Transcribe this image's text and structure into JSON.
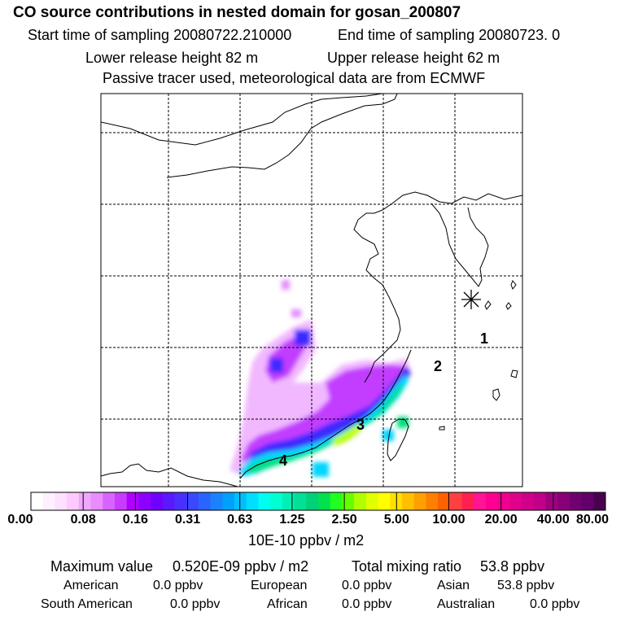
{
  "header": {
    "title": "CO  source contributions in nested domain for gosan_200807",
    "start": "Start time of sampling 20080722.210000",
    "end": "End time of sampling 20080723.     0",
    "lower": "Lower release height   82 m",
    "upper": "Upper release height   62 m",
    "note": "Passive tracer used, meteorological data are from ECMWF"
  },
  "map": {
    "receptor_markers": [
      "1",
      "2",
      "3",
      "4"
    ],
    "receptor_symbol": "star-marker",
    "grid": "dashed",
    "max_colors": [
      "#b000ff",
      "#3b2cff",
      "#00c8ff",
      "#00ffc8",
      "#9cff00",
      "#ffff00"
    ]
  },
  "colorbar": {
    "ticks": [
      "0.00",
      "0.08",
      "0.16",
      "0.31",
      "0.63",
      "1.25",
      "2.50",
      "5.00",
      "10.00",
      "20.00",
      "40.00",
      "80.00"
    ],
    "colors": [
      "#ffffff",
      "#fff0ff",
      "#ffe0ff",
      "#ffc8ff",
      "#f0a8ff",
      "#e88cff",
      "#d864ff",
      "#c83cff",
      "#b000ff",
      "#8c00ff",
      "#7000ff",
      "#5a18ff",
      "#4a30ff",
      "#3a48ff",
      "#2a64ff",
      "#1a82ff",
      "#00a0ff",
      "#00bfff",
      "#00dfff",
      "#00fff0",
      "#00ffd2",
      "#00f0b4",
      "#00e096",
      "#00d078",
      "#00e050",
      "#20ff20",
      "#66ff00",
      "#b0ff00",
      "#e0ff00",
      "#ffff00",
      "#ffe000",
      "#ffc000",
      "#ffa000",
      "#ff8000",
      "#ff6000",
      "#ff4040",
      "#ff2050",
      "#ff1493",
      "#ff0090",
      "#f00090",
      "#e0008c",
      "#d0008a",
      "#c00088",
      "#a00080",
      "#880078",
      "#700070",
      "#600068",
      "#4a0050"
    ],
    "unit": "10E-10 ppbv / m2"
  },
  "summary": {
    "max_label": "Maximum value",
    "max_value": "0.520E-09 ppbv / m2",
    "total_label": "Total mixing ratio",
    "total_value": "53.8 ppbv",
    "regions": [
      {
        "name": "American",
        "value": "0.0 ppbv"
      },
      {
        "name": "European",
        "value": "0.0 ppbv"
      },
      {
        "name": "Asian",
        "value": "53.8 ppbv"
      },
      {
        "name": "South American",
        "value": "0.0 ppbv"
      },
      {
        "name": "African",
        "value": "0.0 ppbv"
      },
      {
        "name": "Australian",
        "value": "0.0 ppbv"
      }
    ]
  }
}
